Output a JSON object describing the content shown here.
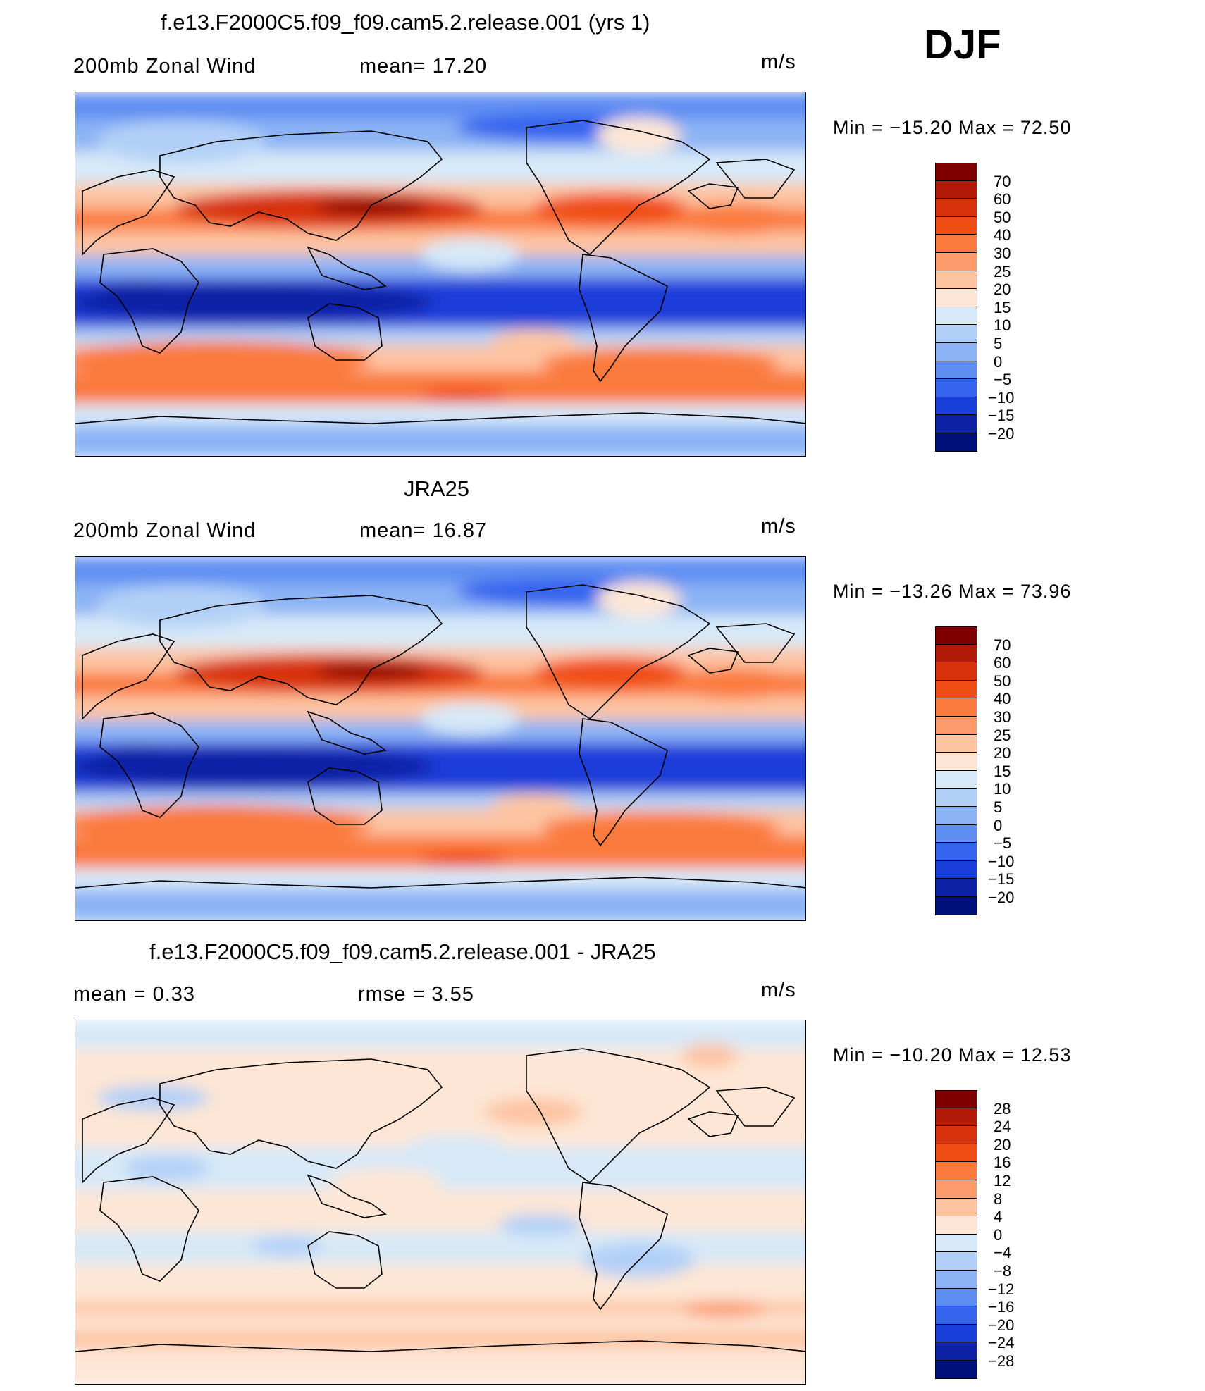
{
  "season": "DJF",
  "units": "m/s",
  "panels": [
    {
      "title": "f.e13.F2000C5.f09_f09.cam5.2.release.001 (yrs 1)",
      "left_label": "200mb Zonal Wind",
      "stat1": "mean=  17.20",
      "min_max": "Min = −15.20 Max =  72.50",
      "kind": "field",
      "ticks": [
        "70",
        "60",
        "50",
        "40",
        "30",
        "25",
        "20",
        "15",
        "10",
        "5",
        "0",
        "−5",
        "−10",
        "−15",
        "−20"
      ]
    },
    {
      "title": "JRA25",
      "left_label": "200mb Zonal Wind",
      "stat1": "mean=  16.87",
      "min_max": "Min = −13.26 Max =  73.96",
      "kind": "field",
      "ticks": [
        "70",
        "60",
        "50",
        "40",
        "30",
        "25",
        "20",
        "15",
        "10",
        "5",
        "0",
        "−5",
        "−10",
        "−15",
        "−20"
      ]
    },
    {
      "title": "f.e13.F2000C5.f09_f09.cam5.2.release.001 - JRA25",
      "left_label": "mean =    0.33",
      "stat1": "rmse =    3.55",
      "min_max": "Min = −10.20 Max =  12.53",
      "kind": "diff",
      "ticks": [
        "28",
        "24",
        "20",
        "16",
        "12",
        "8",
        "4",
        "0",
        "−4",
        "−8",
        "−12",
        "−16",
        "−20",
        "−24",
        "−28"
      ]
    }
  ],
  "colors": {
    "scale": [
      "#7f0000",
      "#b01a06",
      "#d7300b",
      "#f04e15",
      "#fb7a3d",
      "#fc9a6b",
      "#fdc4a2",
      "#fde6d5",
      "#d7e9f8",
      "#b2d0f7",
      "#8cb3f5",
      "#5e8ef2",
      "#3563ee",
      "#1a3ed9",
      "#0d22a6",
      "#00107a"
    ],
    "continent_outline": "#000000"
  }
}
